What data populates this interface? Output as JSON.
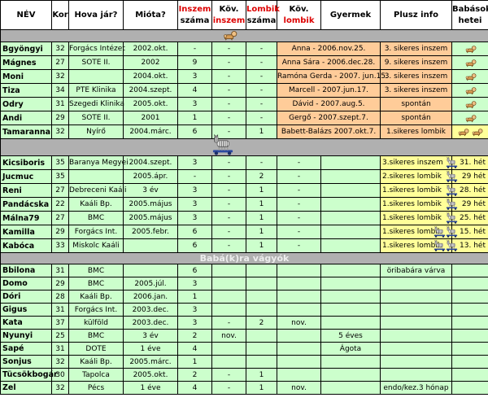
{
  "colors": {
    "cell_green": "#ccffcc",
    "baby_orange": "#ffcc99",
    "pregnant_yellow": "#ffff99",
    "separator_gray": "#b0b0b0",
    "header_red": "#dd0000",
    "grid": "#000000",
    "header_bg": "#ffffff",
    "separator_label": "#ededed"
  },
  "header": {
    "cells": [
      {
        "line1": "NÉV"
      },
      {
        "line1": "Kor"
      },
      {
        "line1": "Hova jár?"
      },
      {
        "line1": "Mióta?"
      },
      {
        "line1": "Inszem",
        "line2": "száma",
        "red1": true
      },
      {
        "line1": "Köv.",
        "line2": "inszem",
        "red2": true
      },
      {
        "line1": "Lombik",
        "line2": "száma",
        "red1": true
      },
      {
        "line1": "Köv.",
        "line2": "lombik",
        "red2": true
      },
      {
        "line1": "Gyermek"
      },
      {
        "line1": "Plusz info"
      },
      {
        "line1": "Babások",
        "line2": "hetei"
      }
    ]
  },
  "sections": [
    {
      "name": "babasok",
      "separator": {
        "type": "icon",
        "icon": "crawling-baby-icon"
      },
      "merged_gyermek": true,
      "rows": [
        {
          "nev": "Bgyöngyi",
          "kor": "32",
          "hova": "Forgács Intézet",
          "miota": "2002.okt.",
          "inszem_szama": "-",
          "kov_inszem": "-",
          "lombik_szama": "-",
          "gyermek": "Anna - 2006.nov.25.",
          "plusz_info": "3. sikeres inszem",
          "baby_icons": 1,
          "hetei_bg": "green"
        },
        {
          "nev": "Mágnes",
          "kor": "27",
          "hova": "SOTE II.",
          "miota": "2002",
          "inszem_szama": "9",
          "kov_inszem": "-",
          "lombik_szama": "-",
          "gyermek": "Anna Sára - 2006.dec.28.",
          "plusz_info": "9. sikeres inszem",
          "baby_icons": 1,
          "hetei_bg": "green"
        },
        {
          "nev": "Moni",
          "kor": "32",
          "hova": "",
          "miota": "2004.okt.",
          "inszem_szama": "3",
          "kov_inszem": "-",
          "lombik_szama": "-",
          "gyermek": "Ramóna Gerda - 2007. jun.15.",
          "plusz_info": "3. sikeres inszem",
          "baby_icons": 1,
          "hetei_bg": "green"
        },
        {
          "nev": "Tiza",
          "kor": "34",
          "hova": "PTE Klinika",
          "miota": "2004.szept.",
          "inszem_szama": "4",
          "kov_inszem": "-",
          "lombik_szama": "-",
          "gyermek": "Marcell - 2007.jun.17.",
          "plusz_info": "3. sikeres inszem",
          "baby_icons": 1,
          "hetei_bg": "green"
        },
        {
          "nev": "Odry",
          "kor": "31",
          "hova": "Szegedi Klinika",
          "miota": "2005.okt.",
          "inszem_szama": "3",
          "kov_inszem": "-",
          "lombik_szama": "-",
          "gyermek": "Dávid - 2007.aug.5.",
          "plusz_info": "spontán",
          "baby_icons": 1,
          "hetei_bg": "green"
        },
        {
          "nev": "Andi",
          "kor": "29",
          "hova": "SOTE II.",
          "miota": "2001",
          "inszem_szama": "1",
          "kov_inszem": "-",
          "lombik_szama": "-",
          "gyermek": "Gergő - 2007.szept.7.",
          "plusz_info": "spontán",
          "baby_icons": 1,
          "hetei_bg": "green"
        },
        {
          "nev": "Tamaranna",
          "kor": "32",
          "hova": "Nyírő",
          "miota": "2004.márc.",
          "inszem_szama": "6",
          "kov_inszem": "-",
          "lombik_szama": "1",
          "gyermek": "Babett-Balázs 2007.okt.7.",
          "plusz_info": "1.sikeres lombik",
          "baby_icons": 2,
          "hetei_bg": "yellow"
        }
      ]
    },
    {
      "name": "pocaklakok",
      "separator": {
        "type": "icon",
        "icon": "zebra-toy-icon"
      },
      "merged_gyermek": false,
      "rows": [
        {
          "nev": "Kicsiboris",
          "kor": "35",
          "hova": "Baranya Megyei",
          "miota": "2004.szept.",
          "inszem_szama": "3",
          "kov_inszem": "-",
          "lombik_szama": "-",
          "kov_lombik": "-",
          "gyermek": "",
          "plusz_info": "3.sikeres inszem",
          "zebra_icons": 1,
          "babasok_hetei": "31. hét"
        },
        {
          "nev": "Jucmuc",
          "kor": "35",
          "hova": "",
          "miota": "2005.ápr.",
          "inszem_szama": "-",
          "kov_inszem": "-",
          "lombik_szama": "2",
          "kov_lombik": "-",
          "gyermek": "",
          "plusz_info": "2.sikeres lombik",
          "zebra_icons": 1,
          "babasok_hetei": "29 hét"
        },
        {
          "nev": "Reni",
          "kor": "27",
          "hova": "Debreceni Kaáli",
          "miota": "3 év",
          "inszem_szama": "3",
          "kov_inszem": "-",
          "lombik_szama": "1",
          "kov_lombik": "-",
          "gyermek": "",
          "plusz_info": "1.sikeres lombik",
          "zebra_icons": 1,
          "babasok_hetei": "28. hét"
        },
        {
          "nev": "Pandácska",
          "kor": "22",
          "hova": "Kaáli Bp.",
          "miota": "2005.május",
          "inszem_szama": "3",
          "kov_inszem": "-",
          "lombik_szama": "1",
          "kov_lombik": "-",
          "gyermek": "",
          "plusz_info": "1.sikeres lombik",
          "zebra_icons": 1,
          "babasok_hetei": "29 hét"
        },
        {
          "nev": "Málna79",
          "kor": "27",
          "hova": "BMC",
          "miota": "2005.május",
          "inszem_szama": "3",
          "kov_inszem": "-",
          "lombik_szama": "1",
          "kov_lombik": "-",
          "gyermek": "",
          "plusz_info": "1.sikeres lombik",
          "zebra_icons": 1,
          "babasok_hetei": "25. hét"
        },
        {
          "nev": "Kamilla",
          "kor": "29",
          "hova": "Forgács Int.",
          "miota": "2005.febr.",
          "inszem_szama": "6",
          "kov_inszem": "-",
          "lombik_szama": "1",
          "kov_lombik": "-",
          "gyermek": "",
          "plusz_info": "1.sikeres lombik",
          "zebra_icons": 2,
          "babasok_hetei": "15. hét"
        },
        {
          "nev": "Kabóca",
          "kor": "33",
          "hova": "Miskolc Kaáli",
          "miota": "",
          "inszem_szama": "6",
          "kov_inszem": "-",
          "lombik_szama": "1",
          "kov_lombik": "-",
          "gyermek": "",
          "plusz_info": "1.sikeres lombik",
          "zebra_icons": 2,
          "babasok_hetei": "13. hét"
        }
      ]
    },
    {
      "name": "babakra-vagyok",
      "separator": {
        "type": "text",
        "label": "Babá(k)ra vágyók"
      },
      "merged_gyermek": false,
      "rows": [
        {
          "nev": "Bbilona",
          "kor": "31",
          "hova": "BMC",
          "miota": "",
          "inszem_szama": "6",
          "kov_inszem": "",
          "lombik_szama": "",
          "kov_lombik": "",
          "gyermek": "",
          "plusz_info": "öribabára várva",
          "babasok_hetei": ""
        },
        {
          "nev": "Domo",
          "kor": "29",
          "hova": "BMC",
          "miota": "2005.júl.",
          "inszem_szama": "3",
          "kov_inszem": "",
          "lombik_szama": "",
          "kov_lombik": "",
          "gyermek": "",
          "plusz_info": "",
          "babasok_hetei": ""
        },
        {
          "nev": "Dóri",
          "kor": "28",
          "hova": "Kaáli Bp.",
          "miota": "2006.jan.",
          "inszem_szama": "1",
          "kov_inszem": "",
          "lombik_szama": "",
          "kov_lombik": "",
          "gyermek": "",
          "plusz_info": "",
          "babasok_hetei": ""
        },
        {
          "nev": "Gigus",
          "kor": "31",
          "hova": "Forgács Int.",
          "miota": "2003.dec.",
          "inszem_szama": "3",
          "kov_inszem": "",
          "lombik_szama": "",
          "kov_lombik": "",
          "gyermek": "",
          "plusz_info": "",
          "babasok_hetei": ""
        },
        {
          "nev": "Kata",
          "kor": "37",
          "hova": "külföld",
          "miota": "2003.dec.",
          "inszem_szama": "3",
          "kov_inszem": "-",
          "lombik_szama": "2",
          "kov_lombik": "nov.",
          "gyermek": "",
          "plusz_info": "",
          "babasok_hetei": ""
        },
        {
          "nev": "Nyunyi",
          "kor": "25",
          "hova": "BMC",
          "miota": "3 év",
          "inszem_szama": "2",
          "kov_inszem": "nov.",
          "lombik_szama": "",
          "kov_lombik": "",
          "gyermek": "5 éves",
          "plusz_info": "",
          "babasok_hetei": ""
        },
        {
          "nev": "Sapé",
          "kor": "31",
          "hova": "DOTE",
          "miota": "1 éve",
          "inszem_szama": "4",
          "kov_inszem": "",
          "lombik_szama": "",
          "kov_lombik": "",
          "gyermek": "Ágota",
          "plusz_info": "",
          "babasok_hetei": ""
        },
        {
          "nev": "Sonjus",
          "kor": "32",
          "hova": "Kaáli Bp.",
          "miota": "2005.márc.",
          "inszem_szama": "1",
          "kov_inszem": "",
          "lombik_szama": "",
          "kov_lombik": "",
          "gyermek": "",
          "plusz_info": "",
          "babasok_hetei": ""
        },
        {
          "nev": "Tücsökbogár",
          "kor": "30",
          "hova": "Tapolca",
          "miota": "2005.okt.",
          "inszem_szama": "2",
          "kov_inszem": "-",
          "lombik_szama": "1",
          "kov_lombik": "",
          "gyermek": "",
          "plusz_info": "",
          "babasok_hetei": ""
        },
        {
          "nev": "Zel",
          "kor": "32",
          "hova": "Pécs",
          "miota": "1 éve",
          "inszem_szama": "4",
          "kov_inszem": "-",
          "lombik_szama": "1",
          "kov_lombik": "nov.",
          "gyermek": "",
          "plusz_info": "endo/kez.3 hónap",
          "babasok_hetei": ""
        }
      ]
    }
  ]
}
